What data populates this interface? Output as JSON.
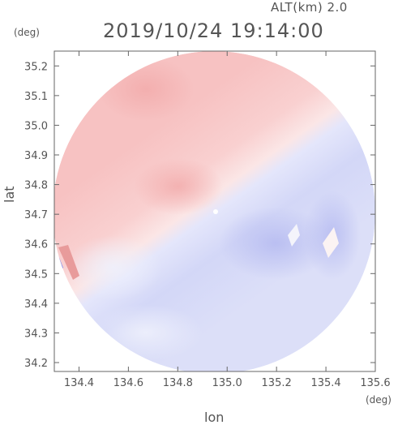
{
  "header": {
    "altitude": "ALT(km) 2.0",
    "timestamp": "2019/10/24 19:14:00"
  },
  "axes": {
    "y_unit": "(deg)",
    "x_unit": "(deg)",
    "y_label": "lat",
    "x_label": "lon",
    "x_ticks": [
      "134.4",
      "134.6",
      "134.8",
      "135.0",
      "135.2",
      "135.4",
      "135.6"
    ],
    "y_ticks": [
      "35.2",
      "35.1",
      "35.0",
      "34.9",
      "34.8",
      "34.7",
      "34.6",
      "34.5",
      "34.4",
      "34.3",
      "34.2"
    ],
    "x_range": [
      134.3,
      135.6
    ],
    "y_range": [
      34.17,
      35.25
    ]
  },
  "radar": {
    "center_lon": 134.94,
    "center_lat": 34.71,
    "colors": {
      "positive": "#f7c3c3",
      "negative": "#cfd4f6",
      "strong_positive": "#e06a6a",
      "strong_negative": "#6f74e6"
    }
  }
}
